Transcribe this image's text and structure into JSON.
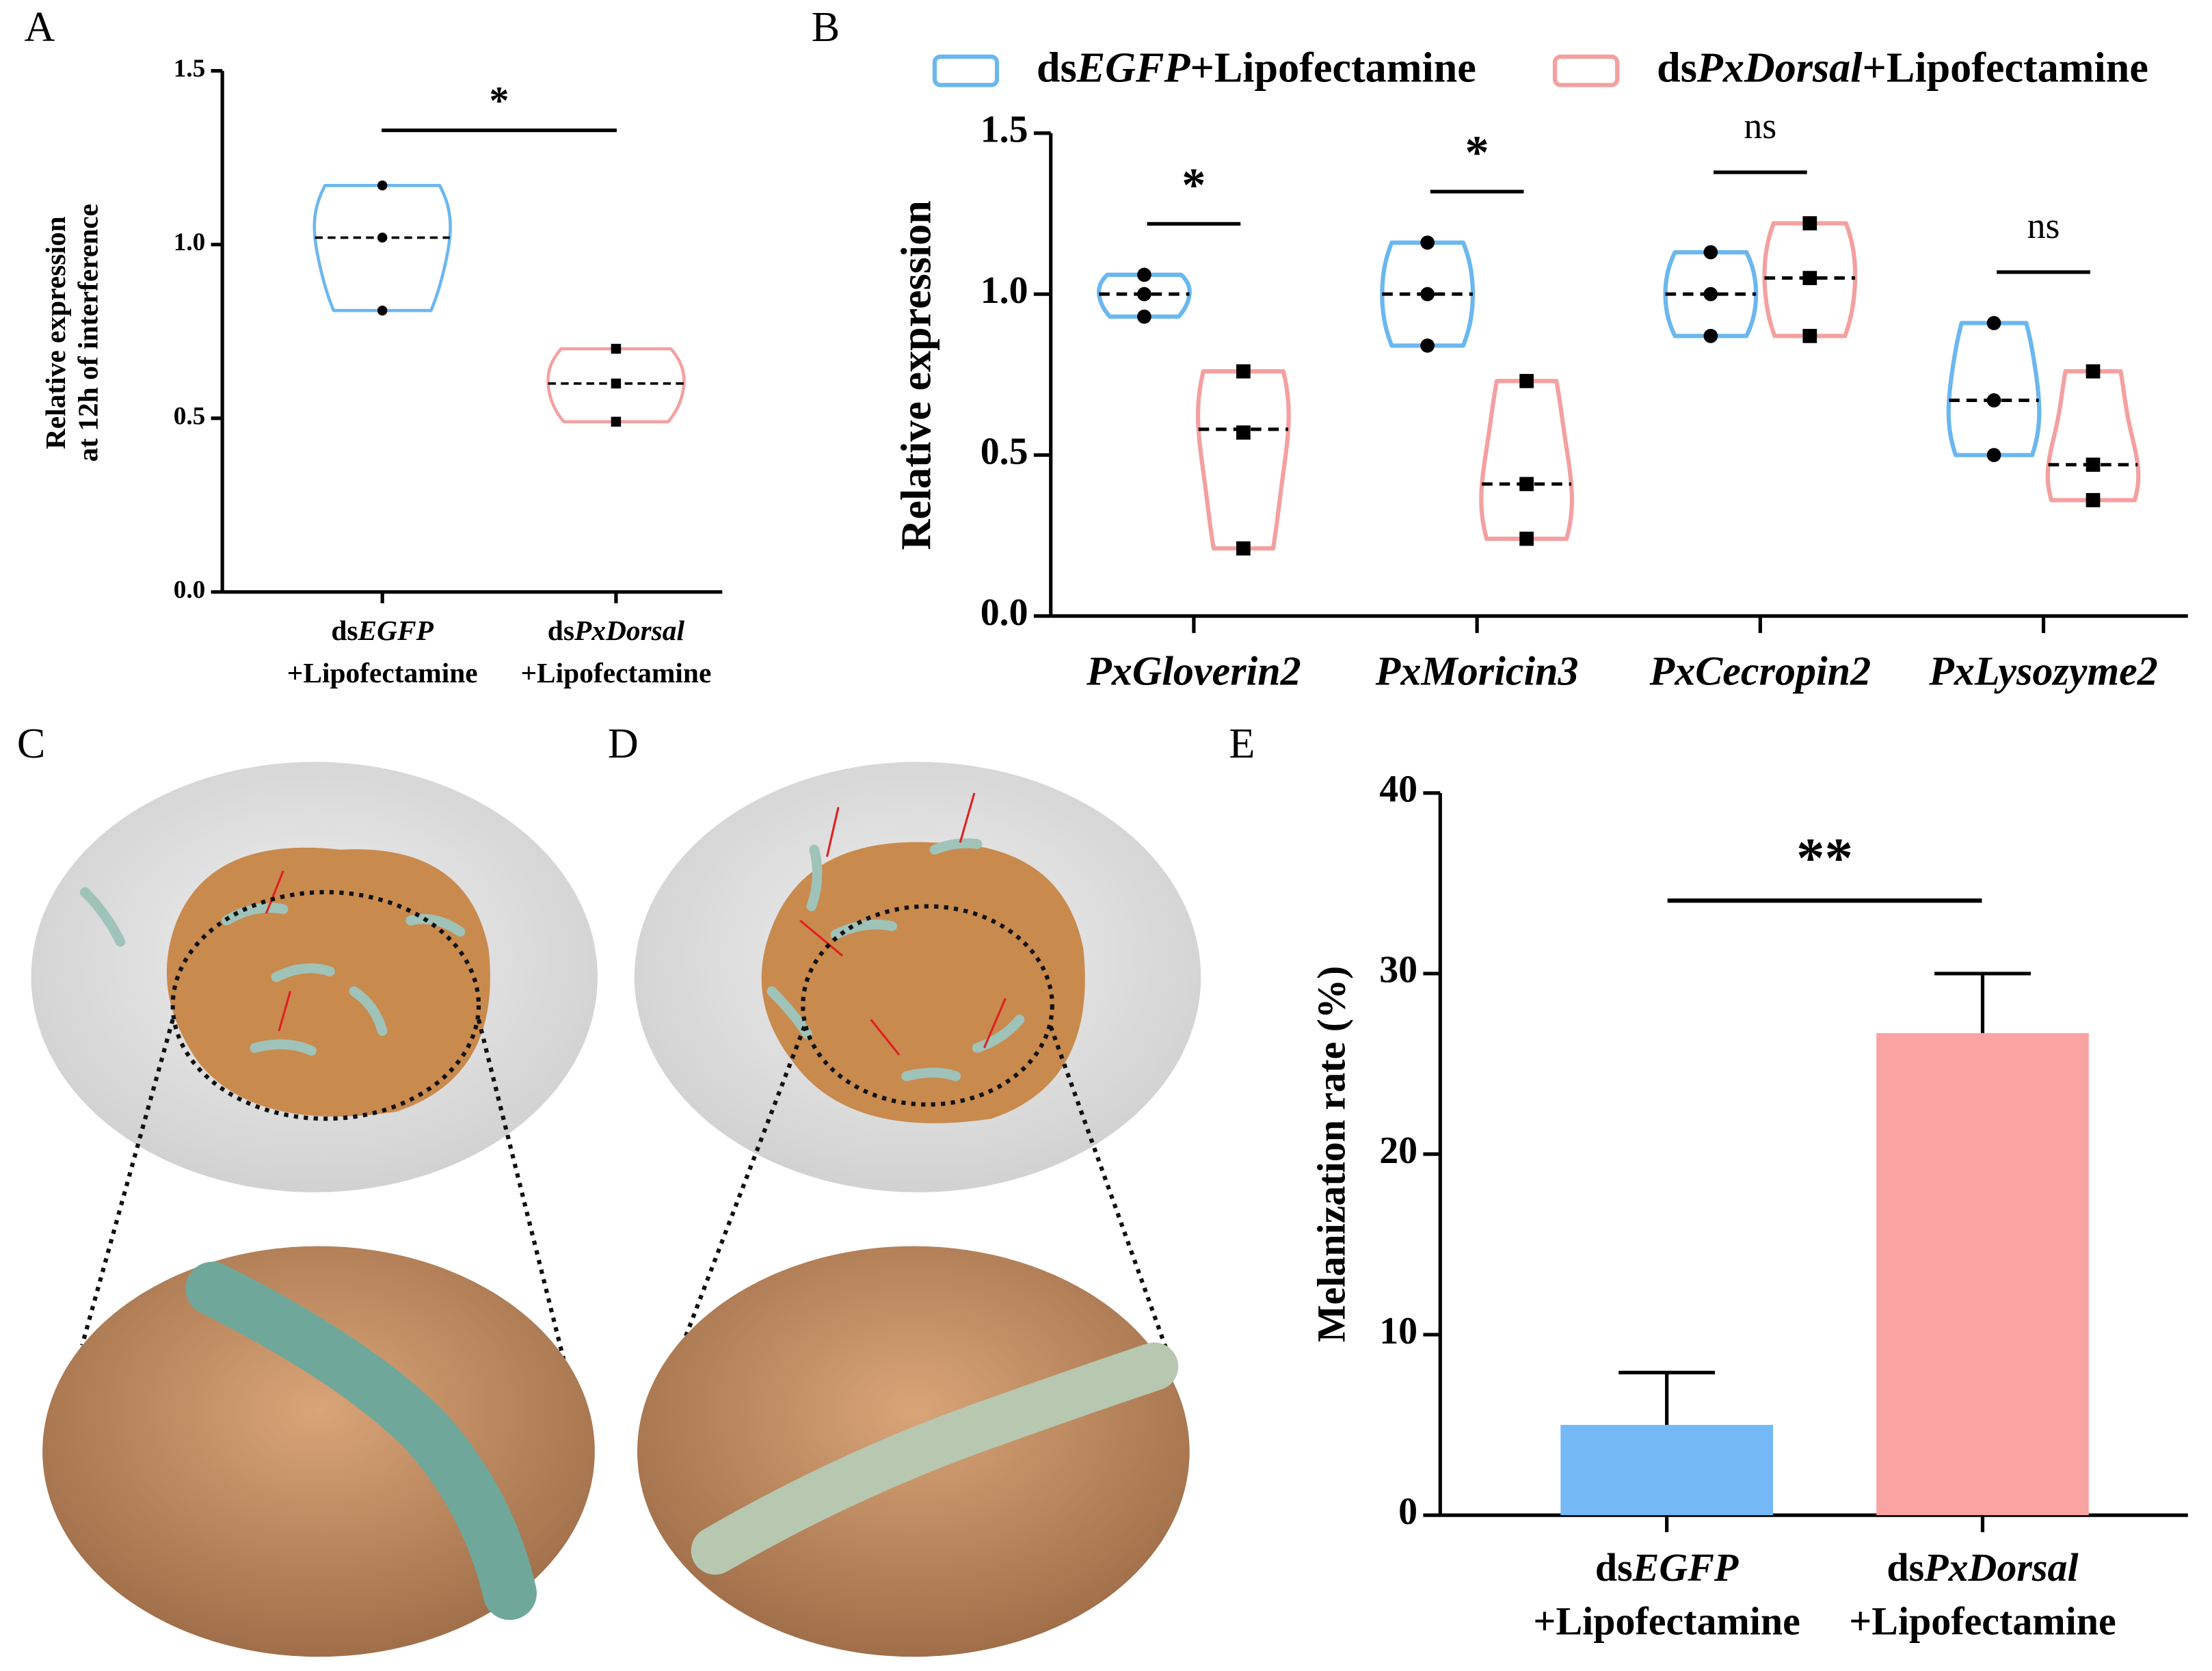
{
  "chart_data": [
    {
      "type": "violin",
      "panel": "A",
      "ylabel": [
        "Relative expression",
        "at 12h of interference"
      ],
      "categories": [
        [
          "ds",
          "EGFP",
          "+Lipofectamine"
        ],
        [
          "ds",
          "PxDorsal",
          "+Lipofectamine"
        ]
      ],
      "values": [
        [
          1.17,
          1.02,
          0.81
        ],
        [
          0.7,
          0.6,
          0.49
        ]
      ],
      "medians": [
        1.02,
        0.6
      ],
      "colors": [
        "#6bb7ef",
        "#f4a0a0"
      ],
      "markers": [
        "circle",
        "square"
      ],
      "ylim": [
        0,
        1.5
      ],
      "yticks": [
        {
          "value": 0,
          "label": "0.0"
        },
        0.5,
        {
          "value": 1,
          "label": "1.0"
        },
        1.5
      ],
      "significance": "*"
    },
    {
      "type": "grouped-violin",
      "panel": "B",
      "ylabel": "Relative expression",
      "categories": [
        "PxGloverin2",
        "PxMoricin3",
        "PxCecropin2",
        "PxLysozyme2"
      ],
      "series": [
        {
          "name": [
            "ds",
            "EGFP",
            "+Lipofectamine"
          ],
          "color": "#6bb7ef",
          "marker": "circle",
          "values": [
            [
              1.06,
              1.0,
              0.93
            ],
            [
              1.16,
              1.0,
              0.84
            ],
            [
              1.13,
              1.0,
              0.87
            ],
            [
              0.91,
              0.67,
              0.5
            ]
          ],
          "medians": [
            1.0,
            1.0,
            1.0,
            0.67
          ]
        },
        {
          "name": [
            "ds",
            "PxDorsal",
            "+Lipofectamine"
          ],
          "color": "#f4a0a0",
          "marker": "square",
          "values": [
            [
              0.76,
              0.57,
              0.21
            ],
            [
              0.73,
              0.41,
              0.24
            ],
            [
              1.22,
              1.05,
              0.87
            ],
            [
              0.76,
              0.47,
              0.36
            ]
          ],
          "medians": [
            0.58,
            0.41,
            1.05,
            0.47
          ]
        }
      ],
      "ylim": [
        0,
        1.5
      ],
      "yticks": [
        {
          "value": 0,
          "label": "0.0"
        },
        0.5,
        {
          "value": 1,
          "label": "1.0"
        },
        1.5
      ],
      "significance": [
        "*",
        "*",
        "ns",
        "ns"
      ]
    },
    {
      "type": "bar",
      "panel": "E",
      "ylabel": "Melanization rate (%)",
      "categories": [
        [
          "ds",
          "EGFP",
          "+Lipofectamine"
        ],
        [
          "ds",
          "PxDorsal",
          "+Lipofectamine"
        ]
      ],
      "values": [
        5.0,
        26.7
      ],
      "errors": [
        2.9,
        3.3
      ],
      "colors": [
        "#74b9f5",
        "#f9a3a3"
      ],
      "ylim": [
        0,
        40
      ],
      "yticks": [
        0,
        10,
        20,
        30,
        40
      ],
      "significance": "**"
    }
  ],
  "images": [
    {
      "panel": "C"
    },
    {
      "panel": "D"
    }
  ]
}
